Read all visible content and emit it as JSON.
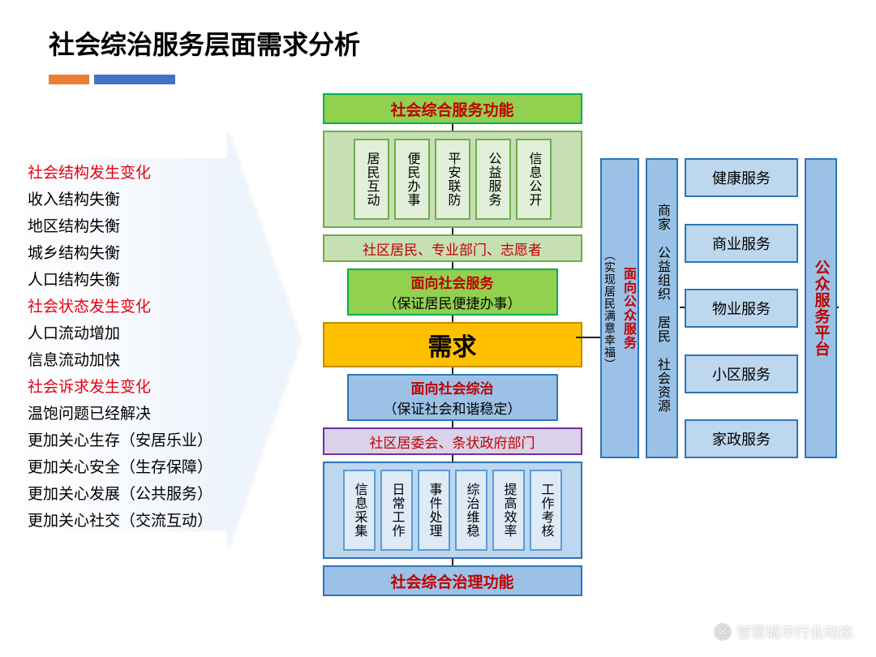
{
  "title": "社会综治服务层面需求分析",
  "accent_bars": {
    "orange": "#ec7d31",
    "blue": "#4472c4"
  },
  "left": {
    "items": [
      {
        "text": "社会结构发生变化",
        "hl": true
      },
      {
        "text": "收入结构失衡",
        "hl": false
      },
      {
        "text": "地区结构失衡",
        "hl": false
      },
      {
        "text": "城乡结构失衡",
        "hl": false
      },
      {
        "text": "人口结构失衡",
        "hl": false
      },
      {
        "text": "社会状态发生变化",
        "hl": true
      },
      {
        "text": "人口流动增加",
        "hl": false
      },
      {
        "text": "信息流动加快",
        "hl": false
      },
      {
        "text": "社会诉求发生变化",
        "hl": true
      },
      {
        "text": "温饱问题已经解决",
        "hl": false
      },
      {
        "text": "更加关心生存（安居乐业）",
        "hl": false
      },
      {
        "text": "更加关心安全（生存保障）",
        "hl": false
      },
      {
        "text": "更加关心发展（公共服务）",
        "hl": false
      },
      {
        "text": "更加关心社交（交流互动）",
        "hl": false
      }
    ]
  },
  "center": {
    "top_title": "社会综合服务功能",
    "top_items": [
      "居民互动",
      "便民办事",
      "平安联防",
      "公益服务",
      "信息公开"
    ],
    "top_actors": "社区居民、专业部门、志愿者",
    "service_box": {
      "title": "面向社会服务",
      "subtitle": "（保证居民便捷办事）"
    },
    "core": "需求",
    "govern_box": {
      "title": "面向社会综治",
      "subtitle": "（保证社会和谐稳定）"
    },
    "bottom_actors": "社区居委会、条状政府部门",
    "bottom_items": [
      "信息采集",
      "日常工作",
      "事件处理",
      "综治维稳",
      "提高效率",
      "工作考核"
    ],
    "bottom_title": "社会综合治理功能"
  },
  "right": {
    "col1": {
      "title": "面向公众服务",
      "subtitle": "（实现居民满意幸福）"
    },
    "col2": "商家 公益组织 居民 社会资源",
    "services": [
      "健康服务",
      "商业服务",
      "物业服务",
      "小区服务",
      "家政服务"
    ],
    "platform": "公众服务平台"
  },
  "colors": {
    "green_fill": "#92d050",
    "green_border": "#00b050",
    "green_light_fill": "#c6e0b4",
    "green_light_border": "#70ad47",
    "blue_fill": "#9bc2e6",
    "blue_border": "#2e75b6",
    "blue_light_fill": "#bdd7ee",
    "lavender_fill": "#d9d2e9",
    "lavender_border": "#7030a0",
    "orange_fill": "#ffc000",
    "orange_border": "#bf8f00",
    "red_text": "#e60012"
  },
  "watermark": "智慧城市行业动态"
}
